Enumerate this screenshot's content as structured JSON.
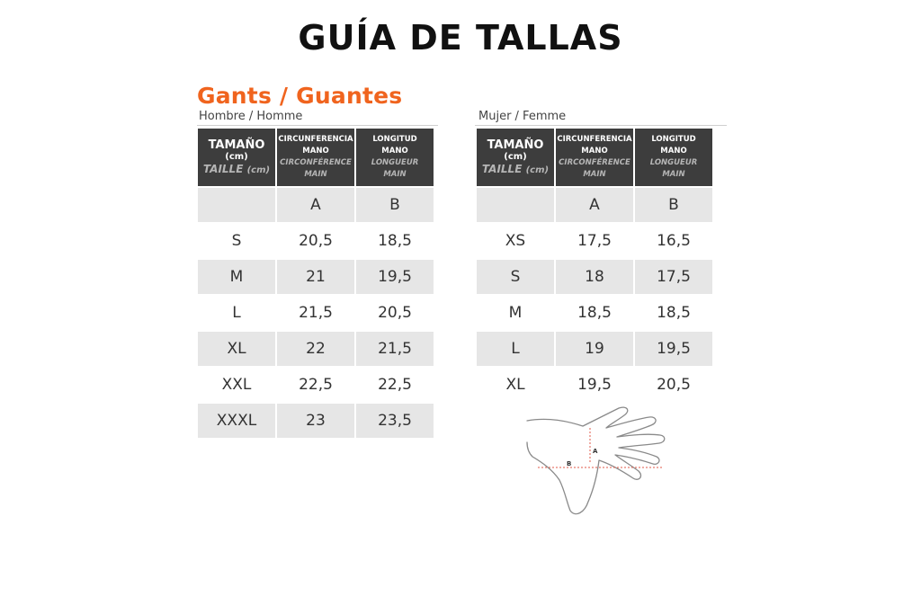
{
  "page_title": "GUÍA DE TALLAS",
  "brand_title": "Gants / Guantes",
  "men": {
    "label": "Hombre / Homme",
    "header": {
      "size": "TAMAÑO",
      "size_unit": "(cm)",
      "size_fr": "TAILLE",
      "size_fr_unit": "(cm)",
      "col_a_1": "CIRCUNFERENCIA",
      "col_a_2": "MANO",
      "col_a_fr_1": "CIRCONFÉRENCE",
      "col_a_fr_2": "MAIN",
      "col_b_1": "LONGITUD",
      "col_b_2": "MANO",
      "col_b_fr_1": "LONGUEUR",
      "col_b_fr_2": "MAIN"
    },
    "letters": [
      "",
      "A",
      "B"
    ],
    "rows": [
      [
        "S",
        "20,5",
        "18,5"
      ],
      [
        "M",
        "21",
        "19,5"
      ],
      [
        "L",
        "21,5",
        "20,5"
      ],
      [
        "XL",
        "22",
        "21,5"
      ],
      [
        "XXL",
        "22,5",
        "22,5"
      ],
      [
        "XXXL",
        "23",
        "23,5"
      ]
    ]
  },
  "women": {
    "label": "Mujer / Femme",
    "header": {
      "size": "TAMAÑO",
      "size_unit": "(cm)",
      "size_fr": "TAILLE",
      "size_fr_unit": "(cm)",
      "col_a_1": "CIRCUNFERENCIA",
      "col_a_2": "MANO",
      "col_a_fr_1": "CIRCONFÉRENCE",
      "col_a_fr_2": "MAIN",
      "col_b_1": "LONGITUD",
      "col_b_2": "MANO",
      "col_b_fr_1": "LONGUEUR",
      "col_b_fr_2": "MAIN"
    },
    "letters": [
      "",
      "A",
      "B"
    ],
    "rows": [
      [
        "XS",
        "17,5",
        "16,5"
      ],
      [
        "S",
        "18",
        "17,5"
      ],
      [
        "M",
        "18,5",
        "18,5"
      ],
      [
        "L",
        "19",
        "19,5"
      ],
      [
        "XL",
        "19,5",
        "20,5"
      ]
    ]
  },
  "diagram": {
    "label_a": "A",
    "label_b": "B",
    "accent_color": "#e05a4a"
  },
  "colors": {
    "brand": "#f0641e",
    "header_bg": "#3d3d3d",
    "row_shade": "#e6e6e6"
  }
}
